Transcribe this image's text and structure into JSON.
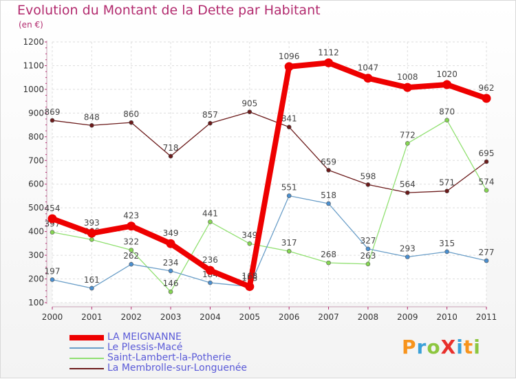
{
  "title": "Evolution du Montant de la Dette par Habitant",
  "unit_label": "(en €)",
  "logo": {
    "text": "ProXiti",
    "letter_colors": [
      "#f7941d",
      "#3aa0d8",
      "#8dc63f",
      "#e8302c",
      "#3aa0d8",
      "#f7941d",
      "#8dc63f"
    ]
  },
  "chart_data": {
    "type": "line",
    "title": "Evolution du Montant de la Dette par Habitant",
    "ylabel": "(en €)",
    "xlabel": "",
    "ylim": [
      100,
      1200
    ],
    "yticks": [
      100,
      200,
      300,
      400,
      500,
      600,
      700,
      800,
      900,
      1000,
      1100,
      1200
    ],
    "grid": true,
    "legend_position": "bottom-left",
    "x": [
      "2000",
      "2001",
      "2002",
      "2003",
      "2004",
      "2005",
      "2006",
      "2007",
      "2008",
      "2009",
      "2010",
      "2011"
    ],
    "series": [
      {
        "name": "La Membrolle-sur-Longuenée",
        "color": "#6b1a1a",
        "marker": "#6b1a1a",
        "values": [
          869,
          848,
          860,
          718,
          857,
          905,
          841,
          659,
          598,
          564,
          571,
          695
        ],
        "labels": [
          "869",
          "848",
          "860",
          "718",
          "857",
          "905",
          "841",
          "659",
          "598",
          "564",
          "571",
          "695"
        ]
      },
      {
        "name": "Saint-Lambert-la-Potherie",
        "color": "#90e070",
        "marker": "#86d652",
        "values": [
          397,
          366,
          322,
          146,
          441,
          349,
          317,
          268,
          263,
          772,
          870,
          574
        ],
        "labels": [
          "397",
          "366",
          "322",
          "146",
          "441",
          "349",
          "317",
          "268",
          "263",
          "772",
          "870",
          "574"
        ]
      },
      {
        "name": "Le Plessis-Macé",
        "color": "#6a9ec8",
        "marker": "#4a8fd0",
        "values": [
          197,
          161,
          262,
          234,
          184,
          168,
          551,
          518,
          327,
          293,
          315,
          277
        ],
        "labels": [
          "197",
          "161",
          "262",
          "234",
          "184",
          "168",
          "551",
          "518",
          "327",
          "293",
          "315",
          "277"
        ]
      },
      {
        "name": "LA MEIGNANNE",
        "color": "#ee0000",
        "marker": "#ee0000",
        "thick": true,
        "values": [
          454,
          393,
          423,
          349,
          236,
          168,
          1096,
          1112,
          1047,
          1008,
          1020,
          962
        ],
        "labels": [
          "454",
          "393",
          "423",
          "349",
          "236",
          "168",
          "1096",
          "1112",
          "1047",
          "1008",
          "1020",
          "962"
        ]
      }
    ]
  },
  "legend": [
    {
      "label": "LA MEIGNANNE",
      "color": "#ee0000",
      "thick": true
    },
    {
      "label": "Le Plessis-Macé",
      "color": "#6a9ec8",
      "thick": false
    },
    {
      "label": "Saint-Lambert-la-Potherie",
      "color": "#90e070",
      "thick": false
    },
    {
      "label": "La Membrolle-sur-Longuenée",
      "color": "#6b1a1a",
      "thick": false
    }
  ]
}
